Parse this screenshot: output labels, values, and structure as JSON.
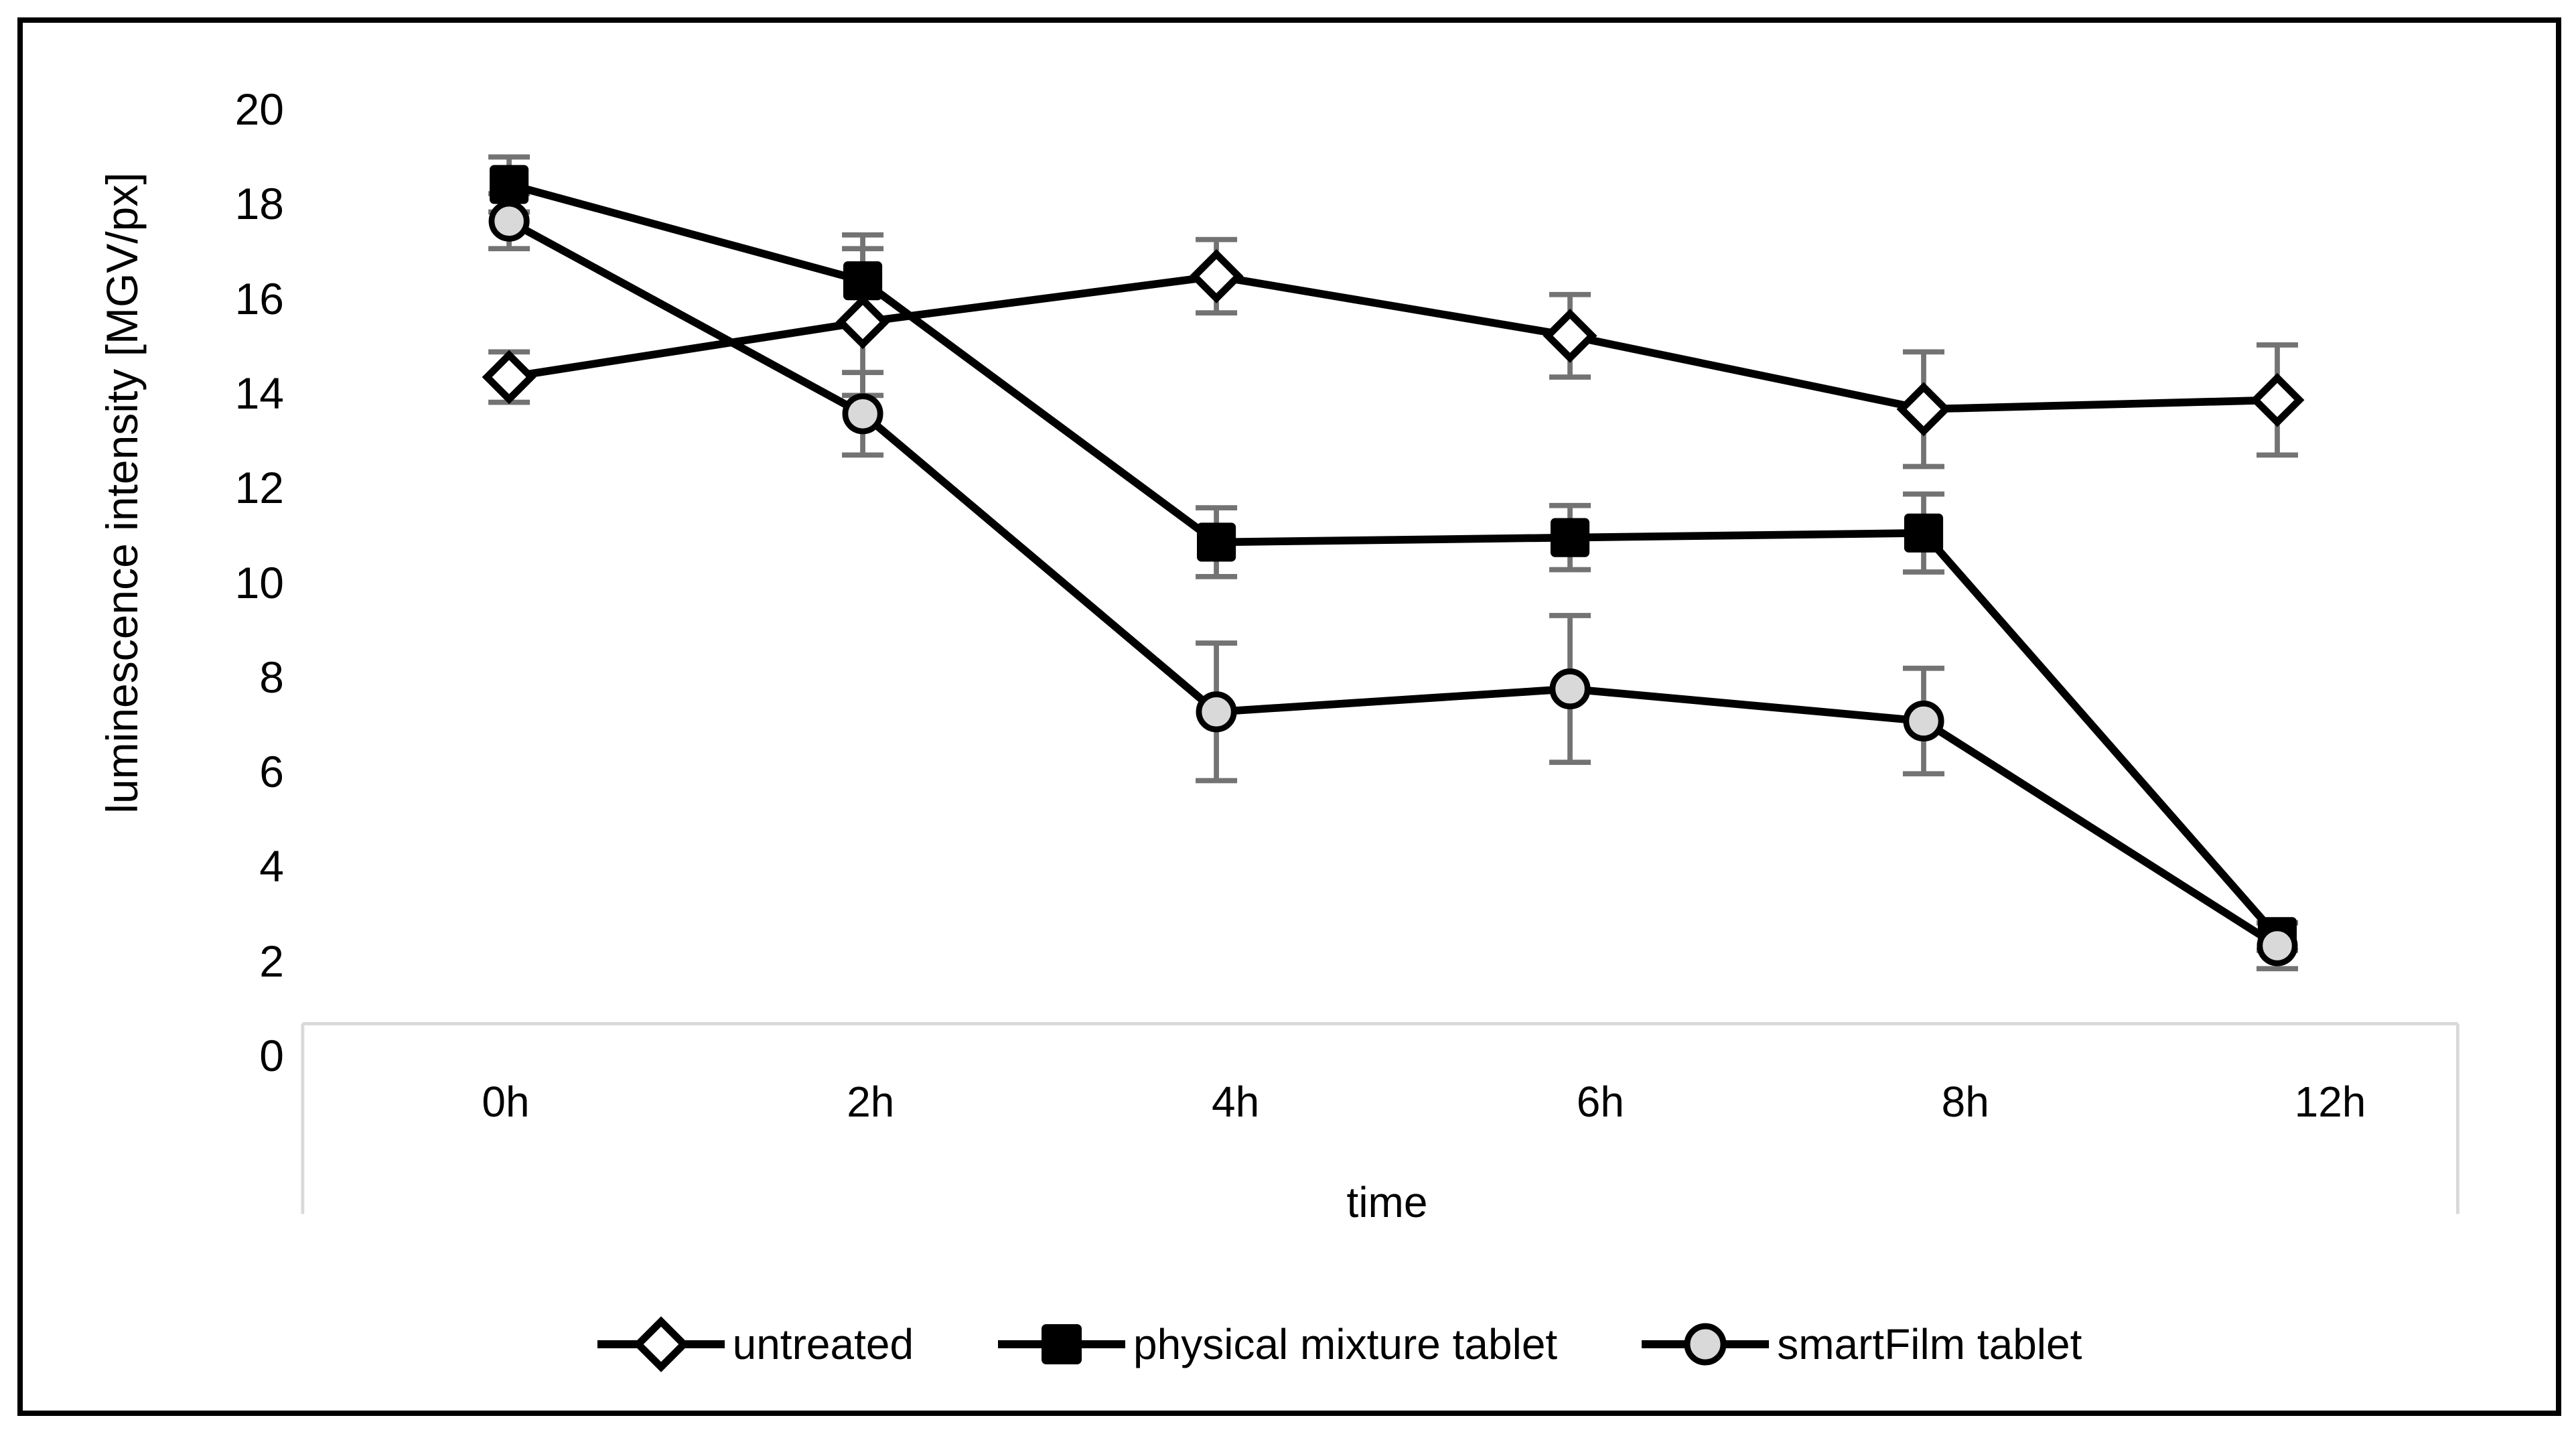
{
  "figure": {
    "background": "#ffffff",
    "frame_color": "#000000"
  },
  "chart_data": {
    "type": "line",
    "title": "",
    "categories": [
      "0h",
      "2h",
      "4h",
      "6h",
      "8h",
      "12h"
    ],
    "series": [
      {
        "name": "untreated",
        "marker": "diamond",
        "marker_fill": "#ffffff",
        "line_color": "#000000",
        "values": [
          14.1,
          15.3,
          16.3,
          15.0,
          13.4,
          13.6
        ],
        "errors": [
          0.55,
          1.6,
          0.8,
          0.9,
          1.25,
          1.2
        ]
      },
      {
        "name": "physical mixture tablet",
        "marker": "square",
        "marker_fill": "#000000",
        "line_color": "#000000",
        "values": [
          18.3,
          16.2,
          10.5,
          10.6,
          10.7,
          1.9
        ],
        "errors": [
          0.6,
          1.0,
          0.75,
          0.7,
          0.85,
          0.3
        ]
      },
      {
        "name": "smartFilm tablet",
        "marker": "circle",
        "marker_fill": "#d9d9d9",
        "line_color": "#000000",
        "values": [
          17.5,
          13.3,
          6.8,
          7.3,
          6.6,
          1.7
        ],
        "errors": [
          0.6,
          0.9,
          1.5,
          1.6,
          1.15,
          0.5
        ]
      }
    ],
    "xlabel": "time",
    "ylabel": "luminescence intensity [MGV/px]",
    "ylim": [
      0,
      20
    ],
    "ytick_step": 2,
    "grid": false,
    "legend_position": "bottom",
    "error_bar_color": "#737373",
    "axis_color": "#d9d9d9"
  }
}
